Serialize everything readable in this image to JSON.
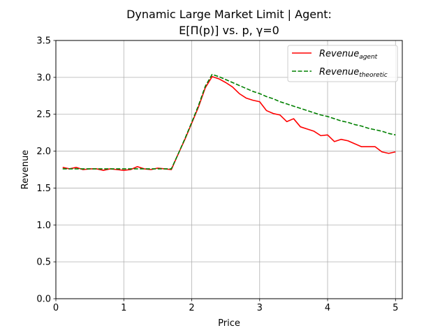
{
  "chart_data": {
    "type": "line",
    "title_line1": "Dynamic Large Market Limit | Agent:",
    "title_line2": "E[Π(p)] vs. p, γ=0",
    "xlabel": "Price",
    "ylabel": "Revenue",
    "xlim": [
      0,
      5.1
    ],
    "ylim": [
      0,
      3.5
    ],
    "xticks": [
      0,
      1,
      2,
      3,
      4,
      5
    ],
    "yticks": [
      0.0,
      0.5,
      1.0,
      1.5,
      2.0,
      2.5,
      3.0,
      3.5
    ],
    "ytick_labels": [
      "0.0",
      "0.5",
      "1.0",
      "1.5",
      "2.0",
      "2.5",
      "3.0",
      "3.5"
    ],
    "grid": true,
    "legend_position": "top-right",
    "series": [
      {
        "name_base": "Revenue",
        "name_sub": "agent",
        "color": "#ff0000",
        "style": "solid",
        "x": [
          0.1,
          0.2,
          0.3,
          0.4,
          0.5,
          0.6,
          0.7,
          0.8,
          0.9,
          1.0,
          1.1,
          1.2,
          1.3,
          1.4,
          1.5,
          1.6,
          1.7,
          1.8,
          1.9,
          2.0,
          2.1,
          2.2,
          2.3,
          2.4,
          2.5,
          2.6,
          2.7,
          2.8,
          2.9,
          3.0,
          3.1,
          3.2,
          3.3,
          3.4,
          3.5,
          3.6,
          3.7,
          3.8,
          3.9,
          4.0,
          4.1,
          4.2,
          4.3,
          4.4,
          4.5,
          4.6,
          4.7,
          4.8,
          4.9,
          5.0
        ],
        "y": [
          1.78,
          1.76,
          1.78,
          1.75,
          1.76,
          1.76,
          1.74,
          1.76,
          1.75,
          1.74,
          1.75,
          1.79,
          1.76,
          1.75,
          1.77,
          1.76,
          1.75,
          1.96,
          2.16,
          2.38,
          2.6,
          2.86,
          3.01,
          2.98,
          2.93,
          2.87,
          2.78,
          2.72,
          2.69,
          2.67,
          2.55,
          2.51,
          2.49,
          2.4,
          2.44,
          2.33,
          2.3,
          2.27,
          2.21,
          2.22,
          2.13,
          2.16,
          2.14,
          2.1,
          2.06,
          2.06,
          2.06,
          1.99,
          1.97,
          1.99
        ]
      },
      {
        "name_base": "Revenue",
        "name_sub": "theoretic",
        "color": "#008000",
        "style": "dashed",
        "x": [
          0.1,
          0.2,
          0.3,
          0.4,
          0.5,
          0.6,
          0.7,
          0.8,
          0.9,
          1.0,
          1.1,
          1.2,
          1.3,
          1.4,
          1.5,
          1.6,
          1.7,
          1.8,
          1.9,
          2.0,
          2.1,
          2.2,
          2.3,
          2.4,
          2.5,
          2.6,
          2.7,
          2.8,
          2.9,
          3.0,
          3.1,
          3.2,
          3.3,
          3.4,
          3.5,
          3.6,
          3.7,
          3.8,
          3.9,
          4.0,
          4.1,
          4.2,
          4.3,
          4.4,
          4.5,
          4.6,
          4.7,
          4.8,
          4.9,
          5.0
        ],
        "y": [
          1.76,
          1.76,
          1.76,
          1.76,
          1.76,
          1.76,
          1.76,
          1.76,
          1.76,
          1.76,
          1.76,
          1.76,
          1.76,
          1.76,
          1.76,
          1.76,
          1.76,
          1.96,
          2.17,
          2.39,
          2.62,
          2.88,
          3.04,
          3.01,
          2.97,
          2.93,
          2.89,
          2.85,
          2.81,
          2.78,
          2.74,
          2.71,
          2.67,
          2.64,
          2.61,
          2.58,
          2.55,
          2.52,
          2.49,
          2.47,
          2.44,
          2.41,
          2.39,
          2.36,
          2.34,
          2.31,
          2.29,
          2.27,
          2.24,
          2.22
        ]
      }
    ]
  }
}
